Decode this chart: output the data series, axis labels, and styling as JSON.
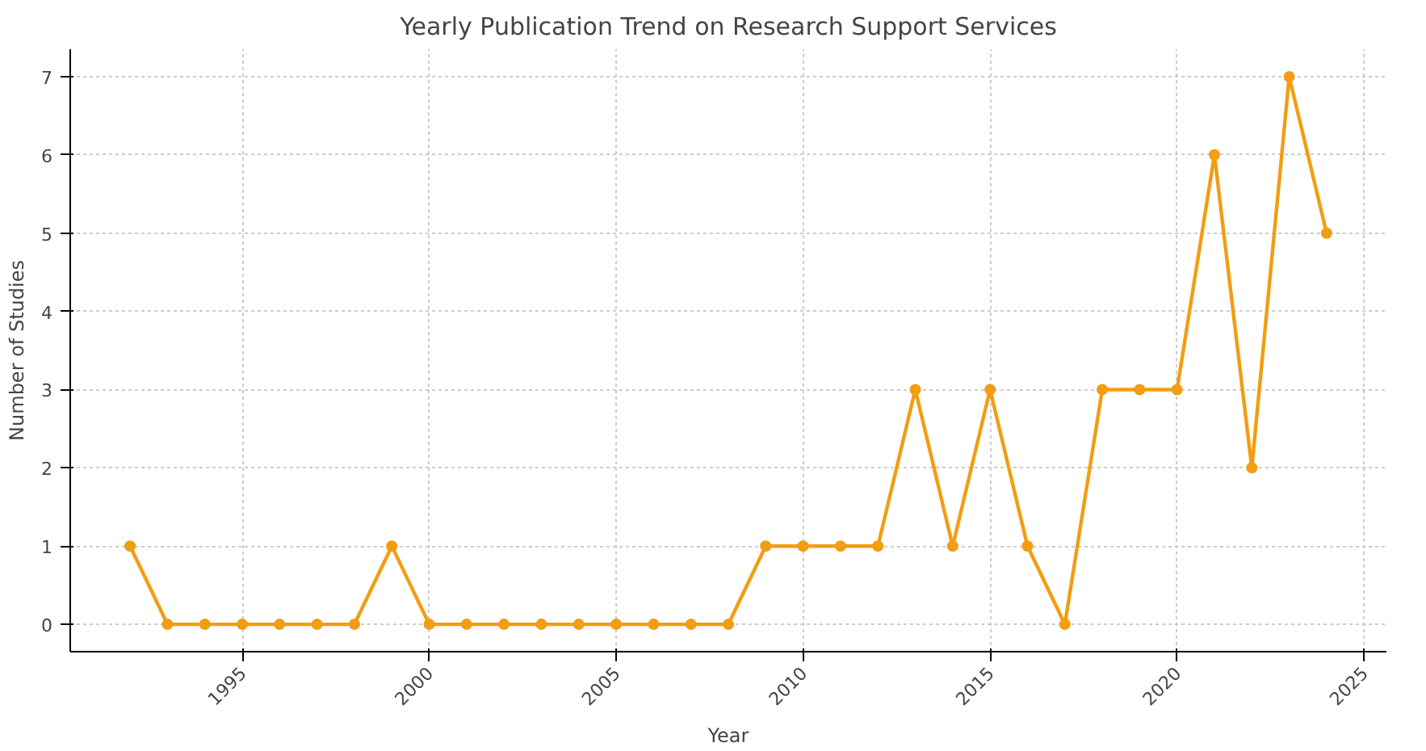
{
  "chart_data": {
    "type": "line",
    "title": "Yearly Publication Trend on Research Support Services",
    "xlabel": "Year",
    "ylabel": "Number of Studies",
    "x": [
      1992,
      1993,
      1994,
      1995,
      1996,
      1997,
      1998,
      1999,
      2000,
      2001,
      2002,
      2003,
      2004,
      2005,
      2006,
      2007,
      2008,
      2009,
      2010,
      2011,
      2012,
      2013,
      2014,
      2015,
      2016,
      2017,
      2018,
      2019,
      2020,
      2021,
      2022,
      2023,
      2024
    ],
    "series": [
      {
        "color": "#f29d12",
        "values": [
          1,
          0,
          0,
          0,
          0,
          0,
          0,
          1,
          0,
          0,
          0,
          0,
          0,
          0,
          0,
          0,
          0,
          1,
          1,
          1,
          1,
          3,
          1,
          3,
          1,
          0,
          3,
          3,
          3,
          6,
          2,
          7,
          5
        ]
      }
    ],
    "xlim": [
      1990.4,
      2025.6
    ],
    "ylim": [
      -0.35,
      7.35
    ],
    "xticks": [
      1995,
      2000,
      2005,
      2010,
      2015,
      2020,
      2025
    ],
    "yticks": [
      0,
      1,
      2,
      3,
      4,
      5,
      6,
      7
    ],
    "grid": true,
    "marker": "circle",
    "line_style": "solid"
  }
}
